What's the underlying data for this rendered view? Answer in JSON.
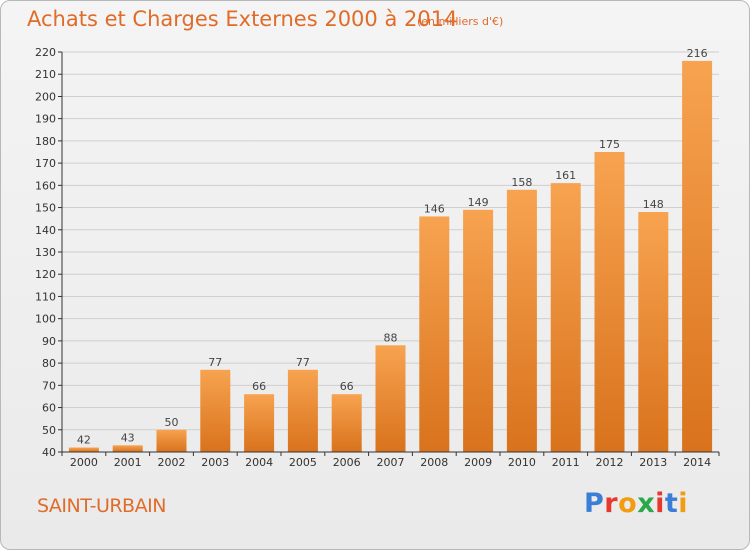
{
  "title": "Achats et Charges Externes 2000 à 2014",
  "subtitle": "(en milliers d'€)",
  "commune": "SAINT-URBAIN",
  "logo": {
    "text": "Proxiti",
    "colors": [
      "#3a7fd5",
      "#e8372c",
      "#f39c12",
      "#2aa84a",
      "#e8372c",
      "#3a7fd5",
      "#f39c12"
    ]
  },
  "colors": {
    "accent": "#e06c2a",
    "bar_light": "#f7a350",
    "bar_dark": "#d9721c",
    "grid": "#cfcfcf",
    "axis": "#333333"
  },
  "chart_data": {
    "type": "bar",
    "title": "Achats et Charges Externes 2000 à 2014",
    "subtitle": "(en milliers d'€)",
    "categories": [
      "2000",
      "2001",
      "2002",
      "2003",
      "2004",
      "2005",
      "2006",
      "2007",
      "2008",
      "2009",
      "2010",
      "2011",
      "2012",
      "2013",
      "2014"
    ],
    "values": [
      42,
      43,
      50,
      77,
      66,
      77,
      66,
      88,
      146,
      149,
      158,
      161,
      175,
      148,
      216
    ],
    "ylim": [
      40,
      220
    ],
    "ytick_step": 10,
    "grid": true,
    "xlabel": "",
    "ylabel": ""
  }
}
